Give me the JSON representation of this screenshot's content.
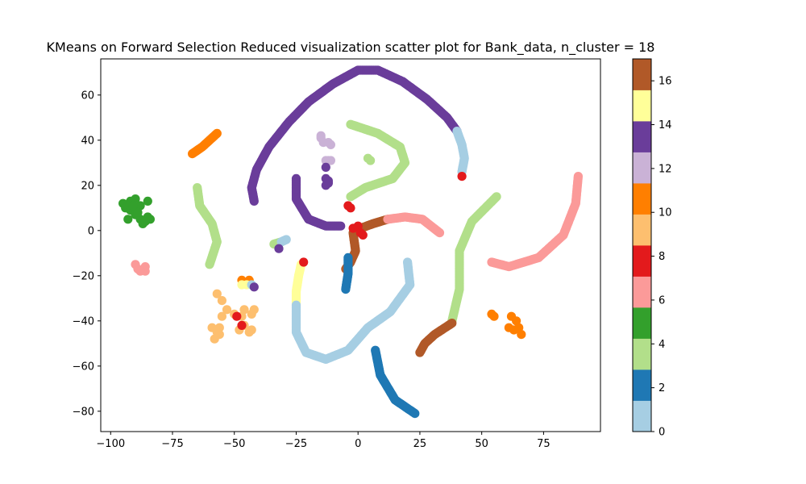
{
  "chart_data": {
    "type": "scatter",
    "title": "KMeans on Forward Selection Reduced visualization scatter plot for Bank_data, n_cluster = 18",
    "xlabel": "",
    "ylabel": "",
    "xlim": [
      -104,
      98
    ],
    "ylim": [
      -89,
      76
    ],
    "xticks": [
      -100,
      -75,
      -50,
      -25,
      0,
      25,
      50,
      75
    ],
    "xtick_labels": [
      "−100",
      "−75",
      "−50",
      "−25",
      "0",
      "25",
      "50",
      "75"
    ],
    "yticks": [
      -80,
      -60,
      -40,
      -20,
      0,
      20,
      40,
      60
    ],
    "yticks_labels": [
      "−80",
      "−60",
      "−40",
      "−20",
      "0",
      "20",
      "40",
      "60"
    ],
    "grid": false,
    "colormap": "Paired",
    "colorbar": {
      "range": [
        0,
        17
      ],
      "ticks": [
        0,
        2,
        4,
        6,
        8,
        10,
        12,
        14,
        16
      ],
      "tick_labels": [
        "0",
        "2",
        "4",
        "6",
        "8",
        "10",
        "12",
        "14",
        "16"
      ],
      "colors": [
        "#a6cee3",
        "#1f78b4",
        "#b2df8a",
        "#33a02c",
        "#fb9a99",
        "#e31a1c",
        "#fdbf6f",
        "#ff7f00",
        "#cab2d6",
        "#6a3d9a",
        "#ffff99",
        "#b15928"
      ]
    },
    "series": [
      {
        "cluster": 14,
        "color": "#6a3d9a",
        "kind": "curve",
        "points": [
          [
            -42,
            13
          ],
          [
            -43,
            19
          ],
          [
            -41,
            27
          ],
          [
            -36,
            37
          ],
          [
            -28,
            48
          ],
          [
            -20,
            57
          ],
          [
            -10,
            65
          ],
          [
            0,
            71
          ],
          [
            8,
            71
          ],
          [
            18,
            66
          ],
          [
            28,
            58
          ],
          [
            36,
            50
          ],
          [
            40,
            44
          ]
        ]
      },
      {
        "cluster": 0,
        "color": "#a6cee3",
        "kind": "curve",
        "points": [
          [
            40,
            44
          ],
          [
            42,
            38
          ],
          [
            43,
            32
          ],
          [
            42,
            26
          ]
        ]
      },
      {
        "cluster": 14,
        "color": "#6a3d9a",
        "kind": "curve",
        "points": [
          [
            -25,
            23
          ],
          [
            -25,
            14
          ],
          [
            -20,
            5
          ],
          [
            -13,
            2
          ],
          [
            -7,
            2
          ]
        ]
      },
      {
        "cluster": 4,
        "color": "#b2df8a",
        "kind": "curve",
        "points": [
          [
            -3,
            47
          ],
          [
            8,
            43
          ],
          [
            17,
            37
          ],
          [
            19,
            30
          ],
          [
            14,
            23
          ],
          [
            3,
            19
          ],
          [
            -3,
            15
          ]
        ]
      },
      {
        "cluster": 16,
        "color": "#b15928",
        "kind": "curve",
        "points": [
          [
            -2,
            -1
          ],
          [
            -1,
            -9
          ],
          [
            -3,
            -14
          ],
          [
            -5,
            -17
          ]
        ]
      },
      {
        "cluster": 16,
        "color": "#b15928",
        "kind": "curve",
        "points": [
          [
            1,
            1
          ],
          [
            6,
            3
          ],
          [
            12,
            5
          ]
        ]
      },
      {
        "cluster": 6,
        "color": "#fb9a99",
        "kind": "curve",
        "points": [
          [
            12,
            5
          ],
          [
            19,
            6
          ],
          [
            26,
            5
          ],
          [
            33,
            -1
          ]
        ]
      },
      {
        "cluster": 2,
        "color": "#1f78b4",
        "kind": "curve",
        "points": [
          [
            -4,
            -12
          ],
          [
            -4,
            -19
          ],
          [
            -5,
            -26
          ]
        ]
      },
      {
        "cluster": 15,
        "color": "#ffff99",
        "kind": "curve",
        "points": [
          [
            -25,
            -33
          ],
          [
            -25,
            -27
          ],
          [
            -24,
            -20
          ],
          [
            -23,
            -15
          ]
        ]
      },
      {
        "cluster": 0,
        "color": "#a6cee3",
        "kind": "curve",
        "points": [
          [
            -25,
            -33
          ],
          [
            -25,
            -45
          ],
          [
            -21,
            -54
          ],
          [
            -13,
            -57
          ],
          [
            -4,
            -53
          ],
          [
            4,
            -43
          ],
          [
            13,
            -36
          ],
          [
            21,
            -24
          ],
          [
            20,
            -14
          ]
        ]
      },
      {
        "cluster": 2,
        "color": "#1f78b4",
        "kind": "curve",
        "points": [
          [
            7,
            -53
          ],
          [
            9,
            -64
          ],
          [
            15,
            -75
          ],
          [
            23,
            -81
          ]
        ]
      },
      {
        "cluster": 4,
        "color": "#b2df8a",
        "kind": "curve",
        "points": [
          [
            56,
            15
          ],
          [
            46,
            4
          ],
          [
            41,
            -9
          ],
          [
            41,
            -26
          ],
          [
            38,
            -40
          ]
        ]
      },
      {
        "cluster": 16,
        "color": "#b15928",
        "kind": "curve",
        "points": [
          [
            38,
            -41
          ],
          [
            31,
            -46
          ],
          [
            27,
            -50
          ],
          [
            25,
            -54
          ]
        ]
      },
      {
        "cluster": 6,
        "color": "#fb9a99",
        "kind": "curve",
        "points": [
          [
            54,
            -14
          ],
          [
            61,
            -16
          ],
          [
            73,
            -12
          ],
          [
            83,
            -2
          ],
          [
            88,
            12
          ],
          [
            89,
            24
          ]
        ]
      },
      {
        "cluster": 11,
        "color": "#ff7f00",
        "kind": "curve",
        "points": [
          [
            -67,
            34
          ],
          [
            -63,
            37
          ],
          [
            -59,
            41
          ],
          [
            -57,
            43
          ]
        ]
      },
      {
        "cluster": 4,
        "color": "#b2df8a",
        "kind": "curve",
        "points": [
          [
            -65,
            19
          ],
          [
            -64,
            11
          ],
          [
            -59,
            3
          ],
          [
            -57,
            -5
          ],
          [
            -60,
            -15
          ]
        ]
      },
      {
        "cluster": 4,
        "color": "#b2df8a",
        "kind": "curve",
        "points": [
          [
            -34,
            -6
          ],
          [
            -31,
            -5
          ]
        ]
      },
      {
        "cluster": 0,
        "color": "#a6cee3",
        "kind": "curve",
        "points": [
          [
            -31,
            -5
          ],
          [
            -29,
            -4
          ]
        ]
      },
      {
        "cluster": 5,
        "color": "#33a02c",
        "kind": "points",
        "points": [
          [
            -95,
            12
          ],
          [
            -94,
            10
          ],
          [
            -92,
            13
          ],
          [
            -90,
            14
          ],
          [
            -88,
            11
          ],
          [
            -92,
            9
          ],
          [
            -85,
            13
          ],
          [
            -90,
            7
          ],
          [
            -88,
            5
          ],
          [
            -85,
            6
          ],
          [
            -87,
            3
          ],
          [
            -84,
            5
          ],
          [
            -93,
            5
          ],
          [
            -89,
            8
          ],
          [
            -91,
            11
          ],
          [
            -86,
            4
          ]
        ]
      },
      {
        "cluster": 6,
        "color": "#fb9a99",
        "kind": "points",
        "points": [
          [
            -90,
            -15
          ],
          [
            -89,
            -17
          ],
          [
            -86,
            -16
          ],
          [
            -86,
            -18
          ],
          [
            -88,
            -18
          ]
        ]
      },
      {
        "cluster": 12,
        "color": "#cab2d6",
        "kind": "points",
        "points": [
          [
            -15,
            42
          ],
          [
            -14,
            39
          ],
          [
            -12,
            39
          ],
          [
            -11,
            38
          ],
          [
            -13,
            31
          ],
          [
            -12,
            31
          ],
          [
            -11,
            31
          ],
          [
            -15,
            41
          ]
        ]
      },
      {
        "cluster": 14,
        "color": "#6a3d9a",
        "kind": "points",
        "points": [
          [
            -13,
            28
          ],
          [
            -13,
            23
          ],
          [
            -12,
            21
          ],
          [
            -13,
            20
          ],
          [
            -12,
            22
          ],
          [
            -32,
            -8
          ]
        ]
      },
      {
        "cluster": 4,
        "color": "#b2df8a",
        "kind": "points",
        "points": [
          [
            4,
            32
          ],
          [
            5,
            31
          ]
        ]
      },
      {
        "cluster": 9,
        "color": "#fdbf6f",
        "kind": "points",
        "points": [
          [
            -57,
            -28
          ],
          [
            -55,
            -31
          ],
          [
            -53,
            -35
          ],
          [
            -50,
            -37
          ],
          [
            -46,
            -35
          ],
          [
            -42,
            -35
          ],
          [
            -43,
            -37
          ],
          [
            -55,
            -38
          ],
          [
            -59,
            -43
          ],
          [
            -56,
            -43
          ],
          [
            -58,
            -48
          ],
          [
            -56,
            -46
          ],
          [
            -57,
            -45
          ],
          [
            -48,
            -44
          ],
          [
            -46,
            -42
          ],
          [
            -44,
            -45
          ],
          [
            -43,
            -44
          ],
          [
            -47,
            -38
          ]
        ]
      },
      {
        "cluster": 11,
        "color": "#ff7f00",
        "kind": "points",
        "points": [
          [
            -47,
            -22
          ],
          [
            -44,
            -22
          ],
          [
            54,
            -37
          ],
          [
            55,
            -38
          ],
          [
            62,
            -38
          ],
          [
            64,
            -40
          ],
          [
            65,
            -43
          ],
          [
            66,
            -46
          ],
          [
            61,
            -43
          ],
          [
            63,
            -44
          ]
        ]
      },
      {
        "cluster": 8,
        "color": "#e31a1c",
        "kind": "points",
        "points": [
          [
            -49,
            -38
          ],
          [
            -47,
            -42
          ],
          [
            -22,
            -14
          ],
          [
            -4,
            11
          ],
          [
            -3,
            10
          ],
          [
            -2,
            1
          ],
          [
            0,
            2
          ],
          [
            1,
            -1
          ],
          [
            2,
            -2
          ],
          [
            42,
            24
          ]
        ]
      },
      {
        "cluster": 15,
        "color": "#ffff99",
        "kind": "points",
        "points": [
          [
            -47,
            -24
          ],
          [
            -45,
            -24
          ]
        ]
      },
      {
        "cluster": 0,
        "color": "#a6cee3",
        "kind": "points",
        "points": [
          [
            -43,
            -24
          ]
        ]
      },
      {
        "cluster": 14,
        "color": "#6a3d9a",
        "kind": "points",
        "points": [
          [
            -42,
            -25
          ]
        ]
      }
    ]
  }
}
